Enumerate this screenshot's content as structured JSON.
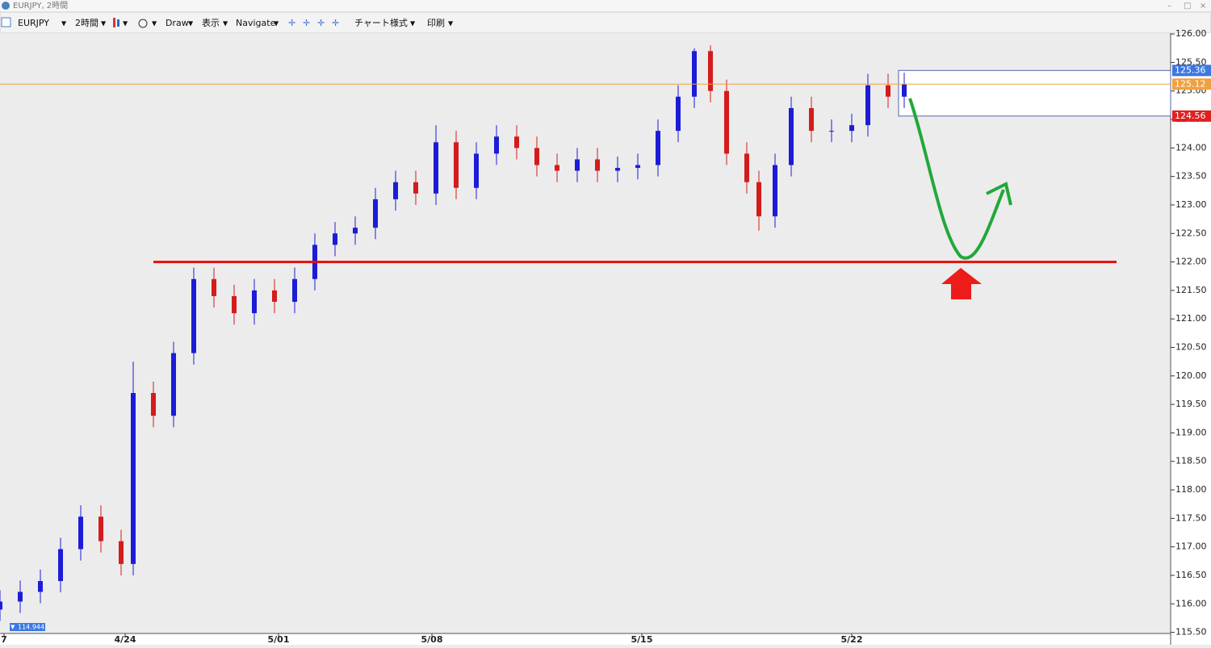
{
  "ui": {
    "window_title": "EURJPY, 2時間",
    "symbol": "EURJPY",
    "timeframe": "2時間",
    "draw": "Draw",
    "view": "表示",
    "navigate": "Navigate",
    "chart_style": "チャート様式",
    "print": "印刷"
  },
  "chart_data": {
    "type": "candlestick",
    "x": [
      0,
      5,
      10,
      15,
      20,
      25,
      30,
      33,
      38,
      43,
      48,
      53,
      58,
      63,
      68,
      73,
      78,
      83,
      88,
      93,
      98,
      103,
      108,
      113,
      118,
      123,
      128,
      133,
      138,
      143,
      148,
      153,
      158,
      163,
      168,
      172,
      176,
      180,
      185,
      188,
      192,
      196,
      201,
      206,
      211,
      215,
      220,
      224
    ],
    "open": [
      115.9,
      116.04,
      116.21,
      116.4,
      116.96,
      117.53,
      117.1,
      116.7,
      119.7,
      119.3,
      120.4,
      121.7,
      121.4,
      121.1,
      121.5,
      121.3,
      121.7,
      122.3,
      122.5,
      122.6,
      123.1,
      123.4,
      123.2,
      124.1,
      123.3,
      123.9,
      124.2,
      124.0,
      123.7,
      123.6,
      123.8,
      123.6,
      123.65,
      123.7,
      124.3,
      124.9,
      125.7,
      125.0,
      123.9,
      123.4,
      122.8,
      123.7,
      124.7,
      124.3,
      124.3,
      124.4,
      125.1,
      124.9
    ],
    "high": [
      116.24,
      116.41,
      116.6,
      117.16,
      117.73,
      117.73,
      117.3,
      120.25,
      119.9,
      120.6,
      121.9,
      121.9,
      121.6,
      121.7,
      121.7,
      121.9,
      122.5,
      122.7,
      122.8,
      123.3,
      123.6,
      123.6,
      124.4,
      124.3,
      124.1,
      124.4,
      124.4,
      124.2,
      123.9,
      124.0,
      124.0,
      123.85,
      123.9,
      124.5,
      125.1,
      125.75,
      125.8,
      125.2,
      124.1,
      123.6,
      123.9,
      124.9,
      124.9,
      124.5,
      124.6,
      125.3,
      125.3,
      125.32
    ],
    "low": [
      115.7,
      115.84,
      116.01,
      116.2,
      116.76,
      116.9,
      116.5,
      116.5,
      119.1,
      119.1,
      120.2,
      121.2,
      120.9,
      120.9,
      121.1,
      121.1,
      121.5,
      122.1,
      122.3,
      122.4,
      122.9,
      123.0,
      123.0,
      123.1,
      123.1,
      123.7,
      123.8,
      123.5,
      123.4,
      123.4,
      123.4,
      123.4,
      123.45,
      123.5,
      124.1,
      124.7,
      124.8,
      123.7,
      123.2,
      122.55,
      122.6,
      123.5,
      124.1,
      124.1,
      124.1,
      124.2,
      124.7,
      124.7
    ],
    "close": [
      116.04,
      116.21,
      116.4,
      116.96,
      117.53,
      117.1,
      116.7,
      119.7,
      119.3,
      120.4,
      121.7,
      121.4,
      121.1,
      121.5,
      121.3,
      121.7,
      122.3,
      122.5,
      122.6,
      123.1,
      123.4,
      123.2,
      124.1,
      123.3,
      123.9,
      124.2,
      124.0,
      123.7,
      123.6,
      123.8,
      123.6,
      123.65,
      123.7,
      124.3,
      124.9,
      125.7,
      125.0,
      123.9,
      123.4,
      122.8,
      123.7,
      124.7,
      124.3,
      124.3,
      124.4,
      125.1,
      124.9,
      125.12
    ],
    "up_color": "#1c1cd8",
    "down_color": "#d41c1c",
    "xlim": [
      0,
      290
    ],
    "ylim": [
      115.48,
      126.03
    ],
    "xticks": [
      {
        "value": 1,
        "label": "7"
      },
      {
        "value": 31,
        "label": "4/24"
      },
      {
        "value": 69,
        "label": "5/01"
      },
      {
        "value": 107,
        "label": "5/08"
      },
      {
        "value": 159,
        "label": "5/15"
      },
      {
        "value": 211,
        "label": "5/22"
      }
    ],
    "yticks": [
      {
        "value": 115.5,
        "label": "115.50"
      },
      {
        "value": 116,
        "label": "116.00"
      },
      {
        "value": 116.5,
        "label": "116.50"
      },
      {
        "value": 117,
        "label": "117.00"
      },
      {
        "value": 117.5,
        "label": "117.50"
      },
      {
        "value": 118,
        "label": "118.00"
      },
      {
        "value": 118.5,
        "label": "118.50"
      },
      {
        "value": 119,
        "label": "119.00"
      },
      {
        "value": 119.5,
        "label": "119.50"
      },
      {
        "value": 120,
        "label": "120.00"
      },
      {
        "value": 120.5,
        "label": "120.50"
      },
      {
        "value": 121,
        "label": "121.00"
      },
      {
        "value": 121.5,
        "label": "121.50"
      },
      {
        "value": 122,
        "label": "122.00"
      },
      {
        "value": 122.5,
        "label": "122.50"
      },
      {
        "value": 123,
        "label": "123.00"
      },
      {
        "value": 123.5,
        "label": "123.50"
      },
      {
        "value": 124,
        "label": "124.00"
      },
      {
        "value": 124.5,
        "label": "124.50"
      },
      {
        "value": 125,
        "label": "125.00"
      },
      {
        "value": 125.5,
        "label": "125.50"
      },
      {
        "value": 126,
        "label": "126.00"
      }
    ],
    "support_line": {
      "value": 122.0,
      "x": [
        38,
        276.6
      ],
      "color": "#e01010"
    },
    "price_tags": [
      {
        "value": 125.36,
        "color": "#3c78e0"
      },
      {
        "value": 125.12,
        "color": "#f0a040"
      },
      {
        "value": 124.56,
        "color": "#e02020"
      }
    ],
    "range_box": {
      "top": 125.36,
      "bottom": 124.56,
      "x": 222.6
    },
    "low_marker": 114.944
  }
}
